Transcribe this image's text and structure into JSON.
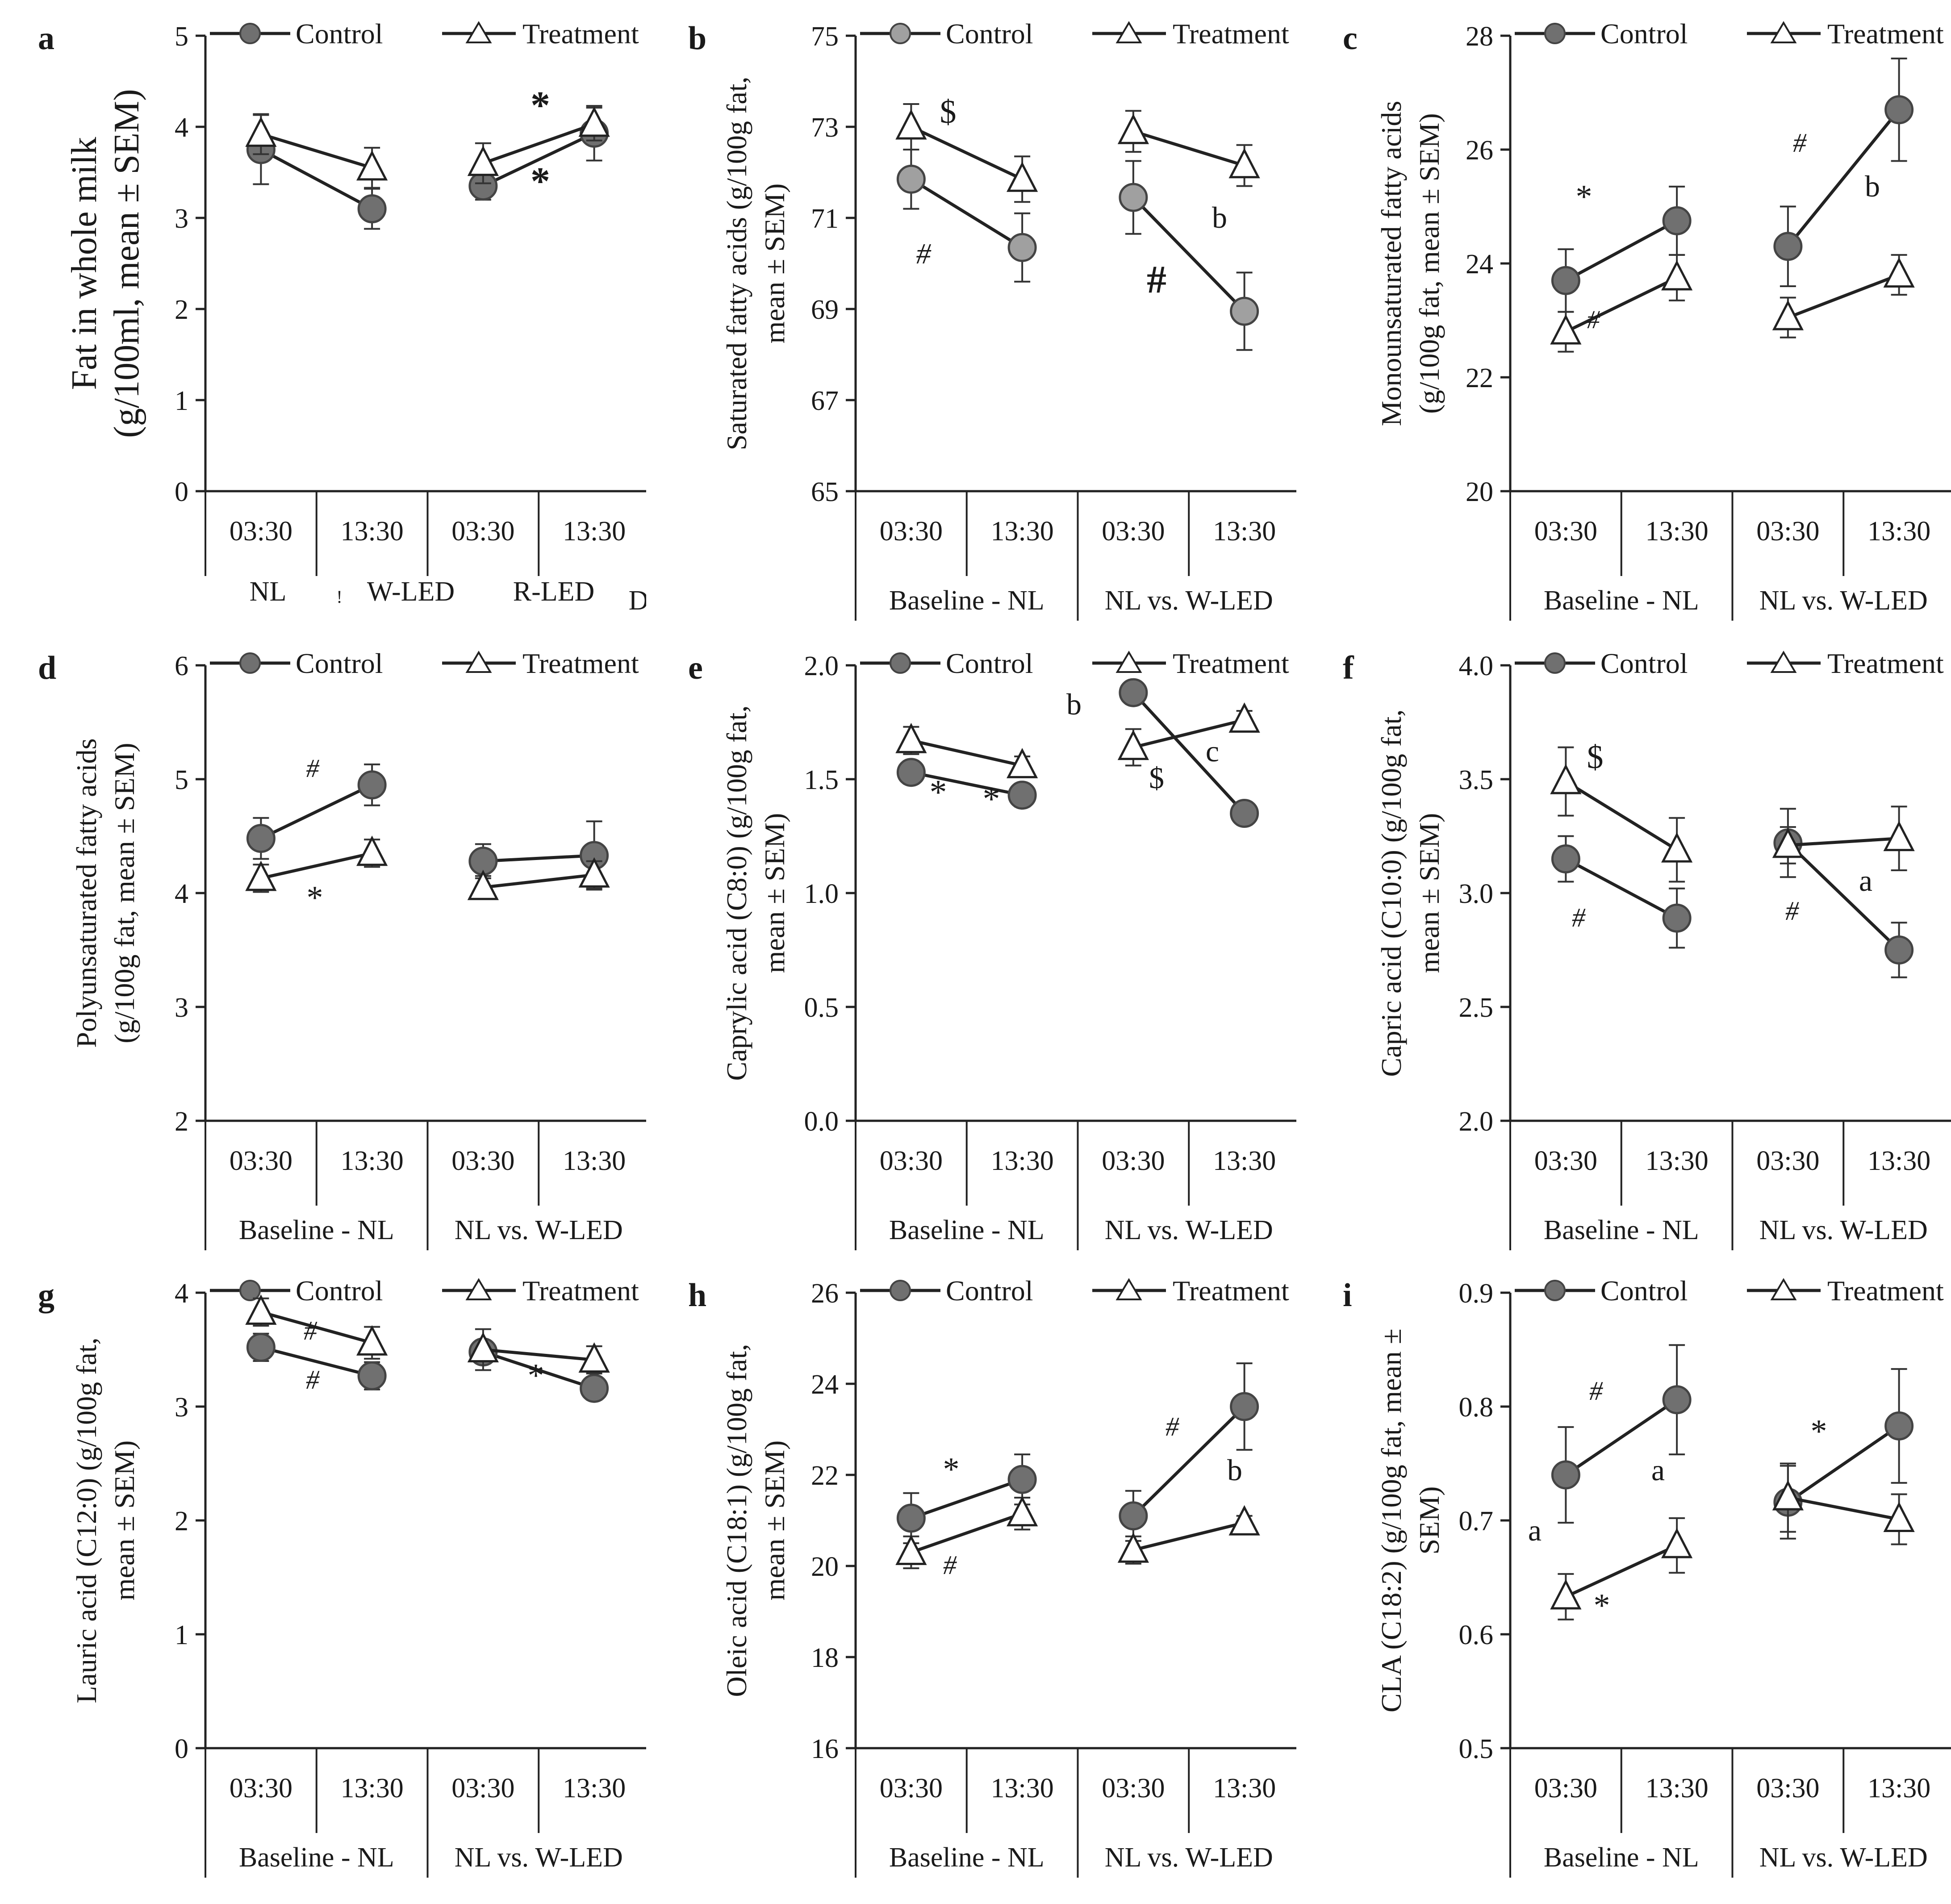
{
  "chart_data": [
    {
      "panel": "a",
      "type": "line",
      "ylabel": [
        "Fat in whole milk",
        "(g/100ml, mean ± SEM)"
      ],
      "ylim": [
        0,
        5
      ],
      "yticks": [
        "0",
        "1",
        "2",
        "3",
        "4",
        "5"
      ],
      "x_ticks": [
        "03:30",
        "13:30",
        "03:30",
        "13:30"
      ],
      "groups": [
        "NL",
        "W-LED",
        "R-LED"
      ],
      "extra_text": [
        "!",
        "D"
      ],
      "legend": [
        "Control",
        "Treatment"
      ],
      "control_color": "#707070",
      "series": [
        {
          "name": "Control",
          "values": [
            3.75,
            3.1,
            3.35,
            3.93
          ],
          "errors": [
            0.38,
            0.22,
            0.15,
            0.3
          ]
        },
        {
          "name": "Treatment",
          "values": [
            3.92,
            3.55,
            3.6,
            4.03
          ],
          "errors": [
            0.22,
            0.22,
            0.22,
            0.18
          ]
        }
      ],
      "annotations": [
        "*",
        "*"
      ]
    },
    {
      "panel": "b",
      "type": "line",
      "ylabel": [
        "Saturated fatty acids (g/100g fat,",
        "mean ± SEM)"
      ],
      "ylim": [
        65,
        75
      ],
      "yticks": [
        "65",
        "67",
        "69",
        "71",
        "73",
        "75"
      ],
      "x_ticks": [
        "03:30",
        "13:30",
        "03:30",
        "13:30"
      ],
      "groups": [
        "Baseline - NL",
        "NL vs. W-LED"
      ],
      "legend": [
        "Control",
        "Treatment"
      ],
      "control_color": "#a0a0a0",
      "series": [
        {
          "name": "Control",
          "values": [
            71.85,
            70.35,
            71.45,
            68.95
          ],
          "errors": [
            0.65,
            0.75,
            0.8,
            0.85
          ]
        },
        {
          "name": "Treatment",
          "values": [
            73.0,
            71.85,
            72.9,
            72.15
          ],
          "errors": [
            0.5,
            0.5,
            0.45,
            0.45
          ]
        }
      ],
      "annotations": [
        "$",
        "#",
        "b",
        "#"
      ]
    },
    {
      "panel": "c",
      "type": "line",
      "ylabel": [
        "Monounsaturated fatty acids",
        "(g/100g fat, mean ± SEM)"
      ],
      "ylim": [
        20,
        28
      ],
      "yticks": [
        "20",
        "22",
        "24",
        "26",
        "28"
      ],
      "x_ticks": [
        "03:30",
        "13:30",
        "03:30",
        "13:30"
      ],
      "groups": [
        "Baseline - NL",
        "NL vs. W-LED"
      ],
      "legend": [
        "Control",
        "Treatment"
      ],
      "control_color": "#707070",
      "series": [
        {
          "name": "Control",
          "values": [
            23.7,
            24.75,
            24.3,
            26.7
          ],
          "errors": [
            0.55,
            0.6,
            0.7,
            0.9
          ]
        },
        {
          "name": "Treatment",
          "values": [
            22.8,
            23.75,
            23.05,
            23.8
          ],
          "errors": [
            0.35,
            0.4,
            0.35,
            0.35
          ]
        }
      ],
      "annotations": [
        "*",
        "#",
        "#",
        "b"
      ]
    },
    {
      "panel": "d",
      "type": "line",
      "ylabel": [
        "Polyunsaturated fatty acids",
        "(g/100g fat, mean ± SEM)"
      ],
      "ylim": [
        2,
        6
      ],
      "yticks": [
        "2",
        "3",
        "4",
        "5",
        "6"
      ],
      "x_ticks": [
        "03:30",
        "13:30",
        "03:30",
        "13:30"
      ],
      "groups": [
        "Baseline - NL",
        "NL vs. W-LED"
      ],
      "legend": [
        "Control",
        "Treatment"
      ],
      "control_color": "#707070",
      "series": [
        {
          "name": "Control",
          "values": [
            4.48,
            4.95,
            4.28,
            4.33
          ],
          "errors": [
            0.18,
            0.18,
            0.15,
            0.3
          ]
        },
        {
          "name": "Treatment",
          "values": [
            4.13,
            4.35,
            4.05,
            4.16
          ],
          "errors": [
            0.12,
            0.12,
            0.1,
            0.12
          ]
        }
      ],
      "annotations": [
        "#",
        "*"
      ]
    },
    {
      "panel": "e",
      "type": "line",
      "ylabel": [
        "Caprylic acid (C8:0) (g/100g fat,",
        "mean ± SEM)"
      ],
      "ylim": [
        0,
        2
      ],
      "yticks": [
        "0.0",
        "0.5",
        "1.0",
        "1.5",
        "2.0"
      ],
      "x_ticks": [
        "03:30",
        "13:30",
        "03:30",
        "13:30"
      ],
      "groups": [
        "Baseline - NL",
        "NL vs. W-LED"
      ],
      "legend": [
        "Control",
        "Treatment"
      ],
      "control_color": "#707070",
      "series": [
        {
          "name": "Control",
          "values": [
            1.53,
            1.43,
            1.88,
            1.35
          ],
          "errors": [
            0.05,
            0.05,
            0.05,
            0.05
          ]
        },
        {
          "name": "Treatment",
          "values": [
            1.67,
            1.56,
            1.64,
            1.76
          ],
          "errors": [
            0.06,
            0.04,
            0.08,
            0.04
          ]
        }
      ],
      "annotations": [
        "*",
        "*",
        "b",
        "c",
        "$"
      ]
    },
    {
      "panel": "f",
      "type": "line",
      "ylabel": [
        "Capric acid (C10:0) (g/100g fat,",
        "mean ± SEM)"
      ],
      "ylim": [
        2,
        4
      ],
      "yticks": [
        "2.0",
        "2.5",
        "3.0",
        "3.5",
        "4.0"
      ],
      "x_ticks": [
        "03:30",
        "13:30",
        "03:30",
        "13:30"
      ],
      "groups": [
        "Baseline - NL",
        "NL vs. W-LED"
      ],
      "legend": [
        "Control",
        "Treatment"
      ],
      "control_color": "#707070",
      "series": [
        {
          "name": "Control",
          "values": [
            3.15,
            2.89,
            3.22,
            2.75
          ],
          "errors": [
            0.1,
            0.13,
            0.15,
            0.12
          ]
        },
        {
          "name": "Treatment",
          "values": [
            3.49,
            3.19,
            3.21,
            3.24
          ],
          "errors": [
            0.15,
            0.14,
            0.08,
            0.14
          ]
        }
      ],
      "annotations": [
        "$",
        "#",
        "#",
        "a"
      ]
    },
    {
      "panel": "g",
      "type": "line",
      "ylabel": [
        "Lauric acid (C12:0) (g/100g fat,",
        "mean ± SEM)"
      ],
      "ylim": [
        0,
        4
      ],
      "yticks": [
        "0",
        "1",
        "2",
        "3",
        "4"
      ],
      "x_ticks": [
        "03:30",
        "13:30",
        "03:30",
        "13:30"
      ],
      "groups": [
        "Baseline - NL",
        "NL vs. W-LED"
      ],
      "legend": [
        "Control",
        "Treatment"
      ],
      "control_color": "#707070",
      "series": [
        {
          "name": "Control",
          "values": [
            3.52,
            3.27,
            3.48,
            3.16
          ],
          "errors": [
            0.12,
            0.12,
            0.1,
            0.1
          ]
        },
        {
          "name": "Treatment",
          "values": [
            3.83,
            3.56,
            3.5,
            3.41
          ],
          "errors": [
            0.12,
            0.14,
            0.18,
            0.12
          ]
        }
      ],
      "annotations": [
        "#",
        "#",
        "*"
      ]
    },
    {
      "panel": "h",
      "type": "line",
      "ylabel": [
        "Oleic acid (C18:1) (g/100g fat,",
        "mean ± SEM)"
      ],
      "ylim": [
        16,
        26
      ],
      "yticks": [
        "16",
        "18",
        "20",
        "22",
        "24",
        "26"
      ],
      "x_ticks": [
        "03:30",
        "13:30",
        "03:30",
        "13:30"
      ],
      "groups": [
        "Baseline - NL",
        "NL vs. W-LED"
      ],
      "legend": [
        "Control",
        "Treatment"
      ],
      "control_color": "#707070",
      "series": [
        {
          "name": "Control",
          "values": [
            21.05,
            21.9,
            21.1,
            23.5
          ],
          "errors": [
            0.55,
            0.55,
            0.55,
            0.95
          ]
        },
        {
          "name": "Treatment",
          "values": [
            20.3,
            21.15,
            20.35,
            20.95
          ],
          "errors": [
            0.35,
            0.35,
            0.3,
            0.15
          ]
        }
      ],
      "annotations": [
        "*",
        "#",
        "#",
        "b"
      ]
    },
    {
      "panel": "i",
      "type": "line",
      "ylabel": [
        "CLA (C18:2) (g/100g fat, mean ±",
        "SEM)"
      ],
      "ylim": [
        0.5,
        0.9
      ],
      "yticks": [
        "0.5",
        "0.6",
        "0.7",
        "0.8",
        "0.9"
      ],
      "x_ticks": [
        "03:30",
        "13:30",
        "03:30",
        "13:30"
      ],
      "groups": [
        "Baseline - NL",
        "NL vs. W-LED"
      ],
      "legend": [
        "Control",
        "Treatment"
      ],
      "control_color": "#707070",
      "series": [
        {
          "name": "Control",
          "values": [
            0.74,
            0.806,
            0.716,
            0.783
          ],
          "errors": [
            0.042,
            0.048,
            0.032,
            0.05
          ]
        },
        {
          "name": "Treatment",
          "values": [
            0.633,
            0.678,
            0.72,
            0.701
          ],
          "errors": [
            0.02,
            0.024,
            0.03,
            0.022
          ]
        }
      ],
      "annotations": [
        "#",
        "a",
        "a",
        "*",
        "*"
      ]
    }
  ]
}
